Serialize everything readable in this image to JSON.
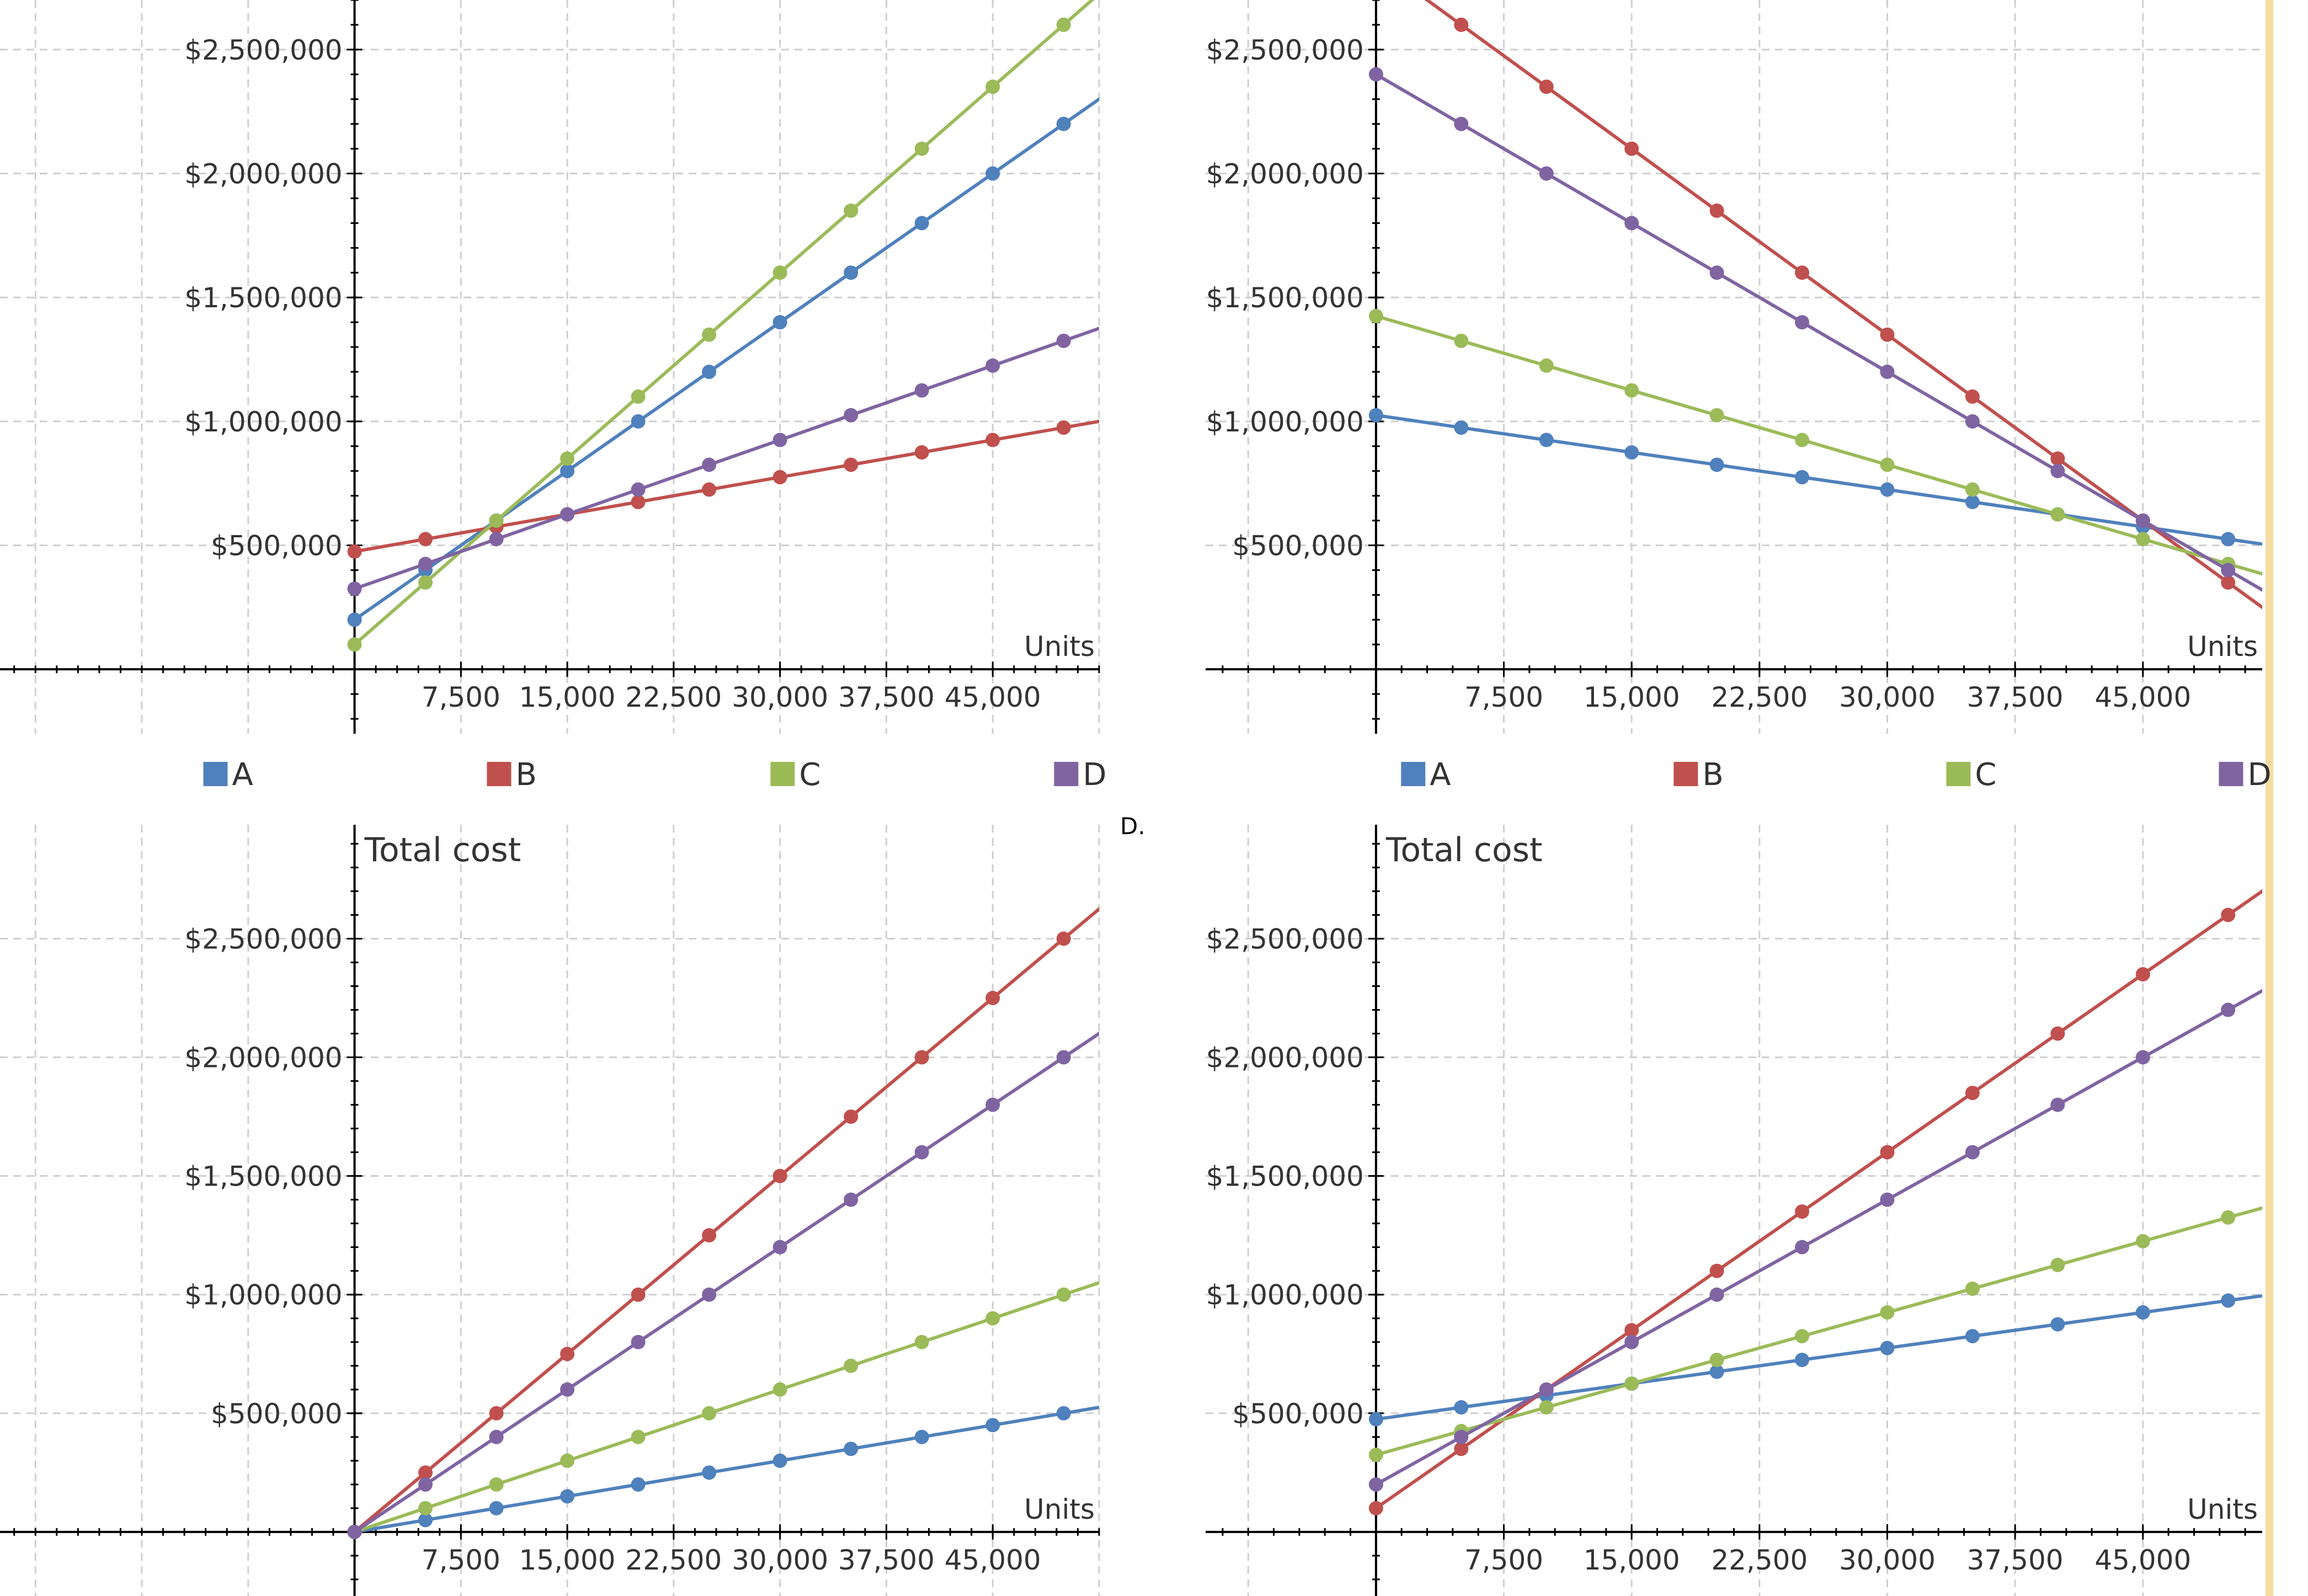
{
  "figure_label": "D.",
  "chart_data": [
    {
      "type": "line",
      "title": "",
      "xlabel": "Units",
      "ylabel": "",
      "xlim": [
        -25000,
        52500
      ],
      "ylim": [
        -260000,
        2700000
      ],
      "x_ticks": [
        7500,
        15000,
        22500,
        30000,
        37500,
        45000
      ],
      "x_tick_labels": [
        "7,500",
        "15,000",
        "22,500",
        "30,000",
        "37,500",
        "45,000"
      ],
      "y_ticks": [
        500000,
        1000000,
        1500000,
        2000000,
        2500000
      ],
      "y_tick_labels": [
        "$500,000",
        "$1,000,000",
        "$1,500,000",
        "$2,000,000",
        "$2,500,000"
      ],
      "grid": true,
      "x": [
        0,
        5000,
        10000,
        15000,
        20000,
        25000,
        30000,
        35000,
        40000,
        45000,
        50000
      ],
      "series": [
        {
          "name": "A",
          "color": "#4f81bd",
          "values": [
            200000,
            400000,
            600000,
            800000,
            1000000,
            1200000,
            1400000,
            1600000,
            1800000,
            2000000,
            2200000
          ]
        },
        {
          "name": "B",
          "color": "#c0504d",
          "values": [
            475000,
            525000,
            575000,
            625000,
            675000,
            725000,
            775000,
            825000,
            875000,
            925000,
            975000
          ]
        },
        {
          "name": "C",
          "color": "#9bbb59",
          "values": [
            100000,
            350000,
            600000,
            850000,
            1100000,
            1350000,
            1600000,
            1850000,
            2100000,
            2350000,
            2600000
          ]
        },
        {
          "name": "D",
          "color": "#8064a2",
          "values": [
            325000,
            425000,
            525000,
            625000,
            725000,
            825000,
            925000,
            1025000,
            1125000,
            1225000,
            1325000
          ]
        }
      ],
      "legend": {
        "placement": "bottom",
        "items": [
          "A",
          "B",
          "C",
          "D"
        ]
      }
    },
    {
      "type": "line",
      "title": "",
      "xlabel": "Units",
      "ylabel": "",
      "xlim": [
        -10000,
        52000
      ],
      "ylim": [
        -260000,
        2700000
      ],
      "x_ticks": [
        7500,
        15000,
        22500,
        30000,
        37500,
        45000
      ],
      "x_tick_labels": [
        "7,500",
        "15,000",
        "22,500",
        "30,000",
        "37,500",
        "45,000"
      ],
      "y_ticks": [
        500000,
        1000000,
        1500000,
        2000000,
        2500000
      ],
      "y_tick_labels": [
        "$500,000",
        "$1,000,000",
        "$1,500,000",
        "$2,000,000",
        "$2,500,000"
      ],
      "grid": true,
      "x": [
        0,
        5000,
        10000,
        15000,
        20000,
        25000,
        30000,
        35000,
        40000,
        45000,
        50000
      ],
      "series": [
        {
          "name": "A",
          "color": "#4f81bd",
          "values": [
            1025000,
            975000,
            925000,
            875000,
            825000,
            775000,
            725000,
            675000,
            625000,
            575000,
            525000
          ]
        },
        {
          "name": "B",
          "color": "#c0504d",
          "values": [
            2850000,
            2600000,
            2350000,
            2100000,
            1850000,
            1600000,
            1350000,
            1100000,
            850000,
            600000,
            350000
          ]
        },
        {
          "name": "C",
          "color": "#9bbb59",
          "values": [
            1425000,
            1325000,
            1225000,
            1125000,
            1025000,
            925000,
            825000,
            725000,
            625000,
            525000,
            425000
          ]
        },
        {
          "name": "D",
          "color": "#8064a2",
          "values": [
            2400000,
            2200000,
            2000000,
            1800000,
            1600000,
            1400000,
            1200000,
            1000000,
            800000,
            600000,
            400000
          ]
        }
      ],
      "legend": {
        "placement": "bottom",
        "items": [
          "A",
          "B",
          "C",
          "D"
        ]
      }
    },
    {
      "type": "line",
      "title": "Total cost",
      "xlabel": "Units",
      "ylabel": "Total cost",
      "xlim": [
        -25000,
        52500
      ],
      "ylim": [
        -270000,
        2980000
      ],
      "x_ticks": [
        7500,
        15000,
        22500,
        30000,
        37500,
        45000
      ],
      "x_tick_labels": [
        "7,500",
        "15,000",
        "22,500",
        "30,000",
        "37,500",
        "45,000"
      ],
      "y_ticks": [
        500000,
        1000000,
        1500000,
        2000000,
        2500000
      ],
      "y_tick_labels": [
        "$500,000",
        "$1,000,000",
        "$1,500,000",
        "$2,000,000",
        "$2,500,000"
      ],
      "grid": true,
      "x": [
        0,
        5000,
        10000,
        15000,
        20000,
        25000,
        30000,
        35000,
        40000,
        45000,
        50000
      ],
      "series": [
        {
          "name": "A",
          "color": "#4f81bd",
          "values": [
            0,
            50000,
            100000,
            150000,
            200000,
            250000,
            300000,
            350000,
            400000,
            450000,
            500000
          ]
        },
        {
          "name": "B",
          "color": "#c0504d",
          "values": [
            0,
            250000,
            500000,
            750000,
            1000000,
            1250000,
            1500000,
            1750000,
            2000000,
            2250000,
            2500000
          ]
        },
        {
          "name": "C",
          "color": "#9bbb59",
          "values": [
            0,
            100000,
            200000,
            300000,
            400000,
            500000,
            600000,
            700000,
            800000,
            900000,
            1000000
          ]
        },
        {
          "name": "D",
          "color": "#8064a2",
          "values": [
            0,
            200000,
            400000,
            600000,
            800000,
            1000000,
            1200000,
            1400000,
            1600000,
            1800000,
            2000000
          ]
        }
      ]
    },
    {
      "type": "line",
      "title": "Total cost",
      "xlabel": "Units",
      "ylabel": "Total cost",
      "xlim": [
        -10000,
        52000
      ],
      "ylim": [
        -270000,
        2980000
      ],
      "x_ticks": [
        7500,
        15000,
        22500,
        30000,
        37500,
        45000
      ],
      "x_tick_labels": [
        "7,500",
        "15,000",
        "22,500",
        "30,000",
        "37,500",
        "45,000"
      ],
      "y_ticks": [
        500000,
        1000000,
        1500000,
        2000000,
        2500000
      ],
      "y_tick_labels": [
        "$500,000",
        "$1,000,000",
        "$1,500,000",
        "$2,000,000",
        "$2,500,000"
      ],
      "grid": true,
      "x": [
        0,
        5000,
        10000,
        15000,
        20000,
        25000,
        30000,
        35000,
        40000,
        45000,
        50000
      ],
      "series": [
        {
          "name": "A",
          "color": "#4f81bd",
          "values": [
            475000,
            525000,
            575000,
            625000,
            675000,
            725000,
            775000,
            825000,
            875000,
            925000,
            975000
          ]
        },
        {
          "name": "B",
          "color": "#c0504d",
          "values": [
            100000,
            350000,
            600000,
            850000,
            1100000,
            1350000,
            1600000,
            1850000,
            2100000,
            2350000,
            2600000
          ]
        },
        {
          "name": "C",
          "color": "#9bbb59",
          "values": [
            325000,
            425000,
            525000,
            625000,
            725000,
            825000,
            925000,
            1025000,
            1125000,
            1225000,
            1325000
          ]
        },
        {
          "name": "D",
          "color": "#8064a2",
          "values": [
            200000,
            400000,
            600000,
            800000,
            1000000,
            1200000,
            1400000,
            1600000,
            1800000,
            2000000,
            2200000
          ]
        }
      ]
    }
  ]
}
